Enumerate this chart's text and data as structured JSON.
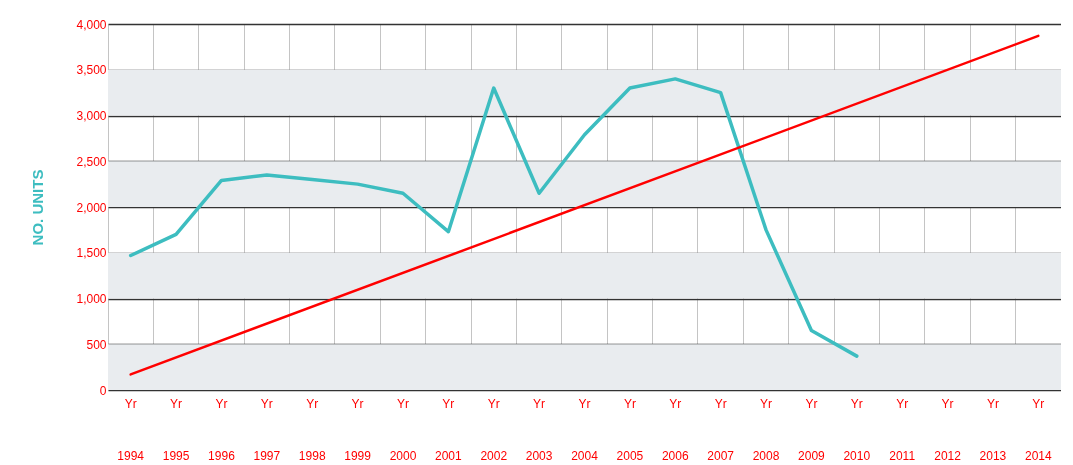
{
  "chart_data": {
    "type": "line",
    "ylabel": "NO. UNITS",
    "categories": [
      "Yr 1994",
      "Yr 1995",
      "Yr 1996",
      "Yr 1997",
      "Yr 1998",
      "Yr 1999",
      "Yr 2000",
      "Yr 2001",
      "Yr 2002",
      "Yr 2003",
      "Yr 2004",
      "Yr 2005",
      "Yr 2006",
      "Yr 2007",
      "Yr 2008",
      "Yr 2009",
      "Yr 2010",
      "Yr 2011",
      "Yr 2012",
      "Yr 2013",
      "Yr 2014"
    ],
    "series": [
      {
        "color": "#3dbdc0",
        "values": [
          1470,
          1700,
          2290,
          2350,
          2300,
          2250,
          2150,
          1730,
          3300,
          2150,
          2790,
          3300,
          3400,
          3250,
          1750,
          650,
          370,
          null,
          null,
          null,
          null
        ]
      },
      {
        "type": "line",
        "color": "#ff0000",
        "x": [
          "Yr 1994",
          "Yr 2014"
        ],
        "values": [
          170,
          3870
        ]
      }
    ],
    "ylim": [
      0,
      4000
    ],
    "yticks": [
      0,
      500,
      {
        "value": 1000,
        "label": "1,000"
      },
      {
        "value": 1500,
        "label": "1,500"
      },
      {
        "value": 2000,
        "label": "2,000"
      },
      {
        "value": 2500,
        "label": "2,500"
      },
      {
        "value": 3000,
        "label": "3,000"
      },
      {
        "value": 3500,
        "label": "3,500"
      },
      {
        "value": 4000,
        "label": "4,000"
      }
    ],
    "bands": [
      {
        "axis": "y",
        "from": 0,
        "to": 500,
        "color": "#e9ecef"
      },
      {
        "axis": "y",
        "from": 1000,
        "to": 1500,
        "color": "#e9ecef"
      },
      {
        "axis": "y",
        "from": 2000,
        "to": 2500,
        "color": "#e9ecef"
      },
      {
        "axis": "y",
        "from": 3000,
        "to": 3500,
        "color": "#e9ecef"
      }
    ],
    "grid": true,
    "marker": "none",
    "line_style": "solid"
  }
}
